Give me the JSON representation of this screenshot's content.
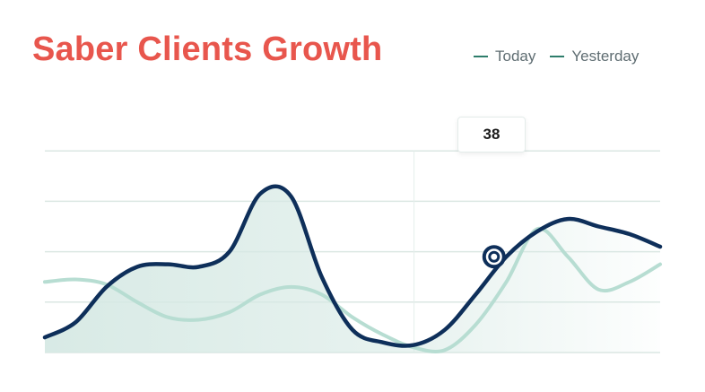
{
  "header": {
    "title": "Saber Clients Growth"
  },
  "legend": {
    "items": [
      {
        "label": "Today",
        "color": "#2e7d6b"
      },
      {
        "label": "Yesterday",
        "color": "#2e7d6b"
      }
    ]
  },
  "tooltip": {
    "value": "38"
  },
  "colors": {
    "title": "#e8564d",
    "today_line": "#0e2f5a",
    "yesterday_line": "#b7ddd2",
    "area_fill": "#d6e9e4",
    "grid": "#dbe7e3"
  },
  "chart_data": {
    "type": "line",
    "title": "Saber Clients Growth",
    "xlabel": "",
    "ylabel": "",
    "ylim": [
      0,
      100
    ],
    "grid": true,
    "legend_position": "top-right",
    "x": [
      0,
      5,
      10,
      15,
      20,
      25,
      30,
      35,
      40,
      45,
      50,
      55,
      60,
      65,
      70,
      75,
      80,
      85,
      90,
      95,
      100
    ],
    "highlight": {
      "series": "Today",
      "x": 73,
      "y": 38
    },
    "series": [
      {
        "name": "Today",
        "values": [
          6,
          12,
          26,
          34,
          35,
          34,
          40,
          63,
          62,
          30,
          9,
          4,
          3,
          9,
          23,
          38,
          48,
          53,
          50,
          47,
          42
        ]
      },
      {
        "name": "Yesterday",
        "values": [
          28,
          29,
          27,
          20,
          14,
          13,
          16,
          23,
          26,
          23,
          14,
          7,
          2,
          1,
          11,
          28,
          49,
          38,
          25,
          28,
          35
        ]
      }
    ]
  }
}
